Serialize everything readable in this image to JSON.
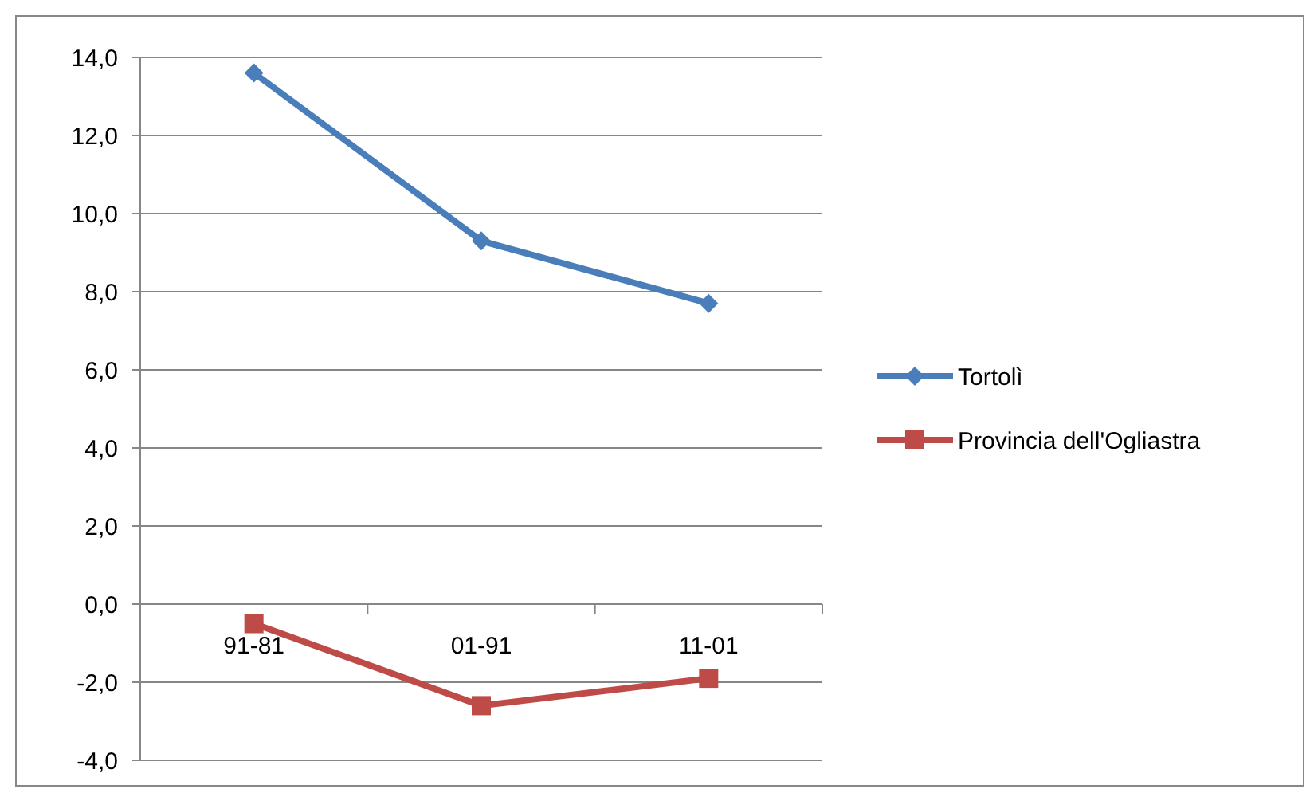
{
  "chart_data": {
    "type": "line",
    "categories": [
      "91-81",
      "01-91",
      "11-01"
    ],
    "series": [
      {
        "name": "Tortolì",
        "color": "#4a7ebb",
        "marker": "diamond",
        "values": [
          13.6,
          9.3,
          7.7
        ]
      },
      {
        "name": "Provincia dell'Ogliastra",
        "color": "#be4b48",
        "marker": "square",
        "values": [
          -0.5,
          -2.6,
          -1.9
        ]
      }
    ],
    "ylim": [
      -4,
      14
    ],
    "yticks": [
      {
        "value": -4,
        "label": "-4,0"
      },
      {
        "value": -2,
        "label": "-2,0"
      },
      {
        "value": 0,
        "label": "0,0"
      },
      {
        "value": 2,
        "label": "2,0"
      },
      {
        "value": 4,
        "label": "4,0"
      },
      {
        "value": 6,
        "label": "6,0"
      },
      {
        "value": 8,
        "label": "8,0"
      },
      {
        "value": 10,
        "label": "10,0"
      },
      {
        "value": 12,
        "label": "12,0"
      },
      {
        "value": 14,
        "label": "14,0"
      }
    ],
    "grid": "y",
    "legend": "right",
    "line_style": "solid"
  }
}
